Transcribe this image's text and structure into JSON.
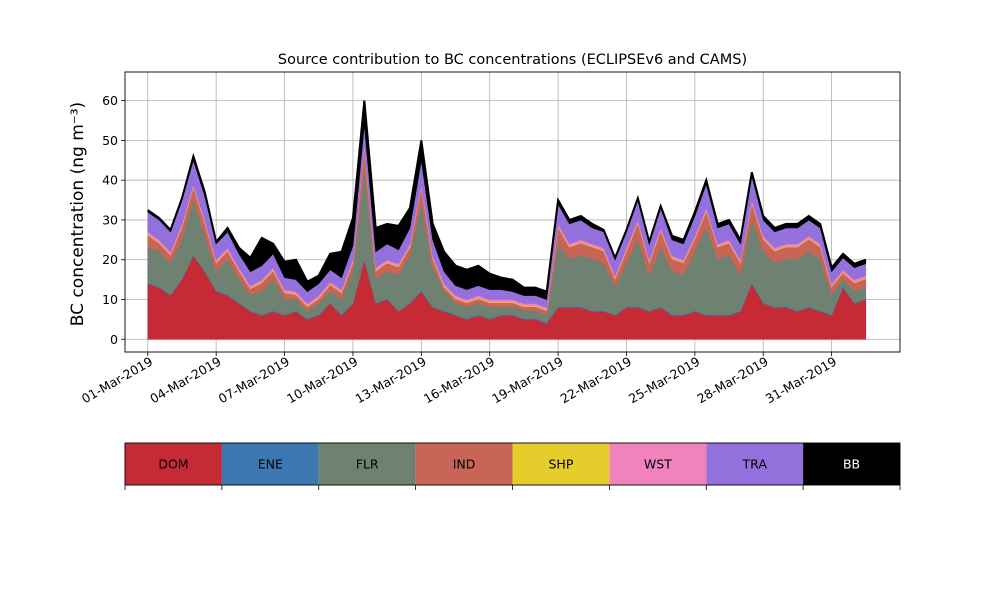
{
  "chart_data": [
    {
      "type": "area",
      "stacked": true,
      "title": "Source contribution to BC concentrations (ECLIPSEv6 and CAMS)",
      "ylabel": "BC concentration (ng m⁻³)",
      "xlabel": "",
      "ylim": [
        -3.2,
        67.2
      ],
      "xlim": [
        "2019-02-28T00:00",
        "2019-04-03T00:00"
      ],
      "grid": true,
      "y_ticks": [
        "0",
        "10",
        "20",
        "30",
        "40",
        "50",
        "60"
      ],
      "x_ticks": [
        "01-Mar-2019",
        "04-Mar-2019",
        "07-Mar-2019",
        "10-Mar-2019",
        "13-Mar-2019",
        "16-Mar-2019",
        "19-Mar-2019",
        "22-Mar-2019",
        "25-Mar-2019",
        "28-Mar-2019",
        "31-Mar-2019"
      ],
      "x": [
        "2019-03-01T00:00",
        "2019-03-01T12:00",
        "2019-03-02T00:00",
        "2019-03-02T12:00",
        "2019-03-03T00:00",
        "2019-03-03T12:00",
        "2019-03-04T00:00",
        "2019-03-04T12:00",
        "2019-03-05T00:00",
        "2019-03-05T12:00",
        "2019-03-06T00:00",
        "2019-03-06T12:00",
        "2019-03-07T00:00",
        "2019-03-07T12:00",
        "2019-03-08T00:00",
        "2019-03-08T12:00",
        "2019-03-09T00:00",
        "2019-03-09T12:00",
        "2019-03-10T00:00",
        "2019-03-10T12:00",
        "2019-03-11T00:00",
        "2019-03-11T12:00",
        "2019-03-12T00:00",
        "2019-03-12T12:00",
        "2019-03-13T00:00",
        "2019-03-13T12:00",
        "2019-03-14T00:00",
        "2019-03-14T12:00",
        "2019-03-15T00:00",
        "2019-03-15T12:00",
        "2019-03-16T00:00",
        "2019-03-16T12:00",
        "2019-03-17T00:00",
        "2019-03-17T12:00",
        "2019-03-18T00:00",
        "2019-03-18T12:00",
        "2019-03-19T00:00",
        "2019-03-19T12:00",
        "2019-03-20T00:00",
        "2019-03-20T12:00",
        "2019-03-21T00:00",
        "2019-03-21T12:00",
        "2019-03-22T00:00",
        "2019-03-22T12:00",
        "2019-03-23T00:00",
        "2019-03-23T12:00",
        "2019-03-24T00:00",
        "2019-03-24T12:00",
        "2019-03-25T00:00",
        "2019-03-25T12:00",
        "2019-03-26T00:00",
        "2019-03-26T12:00",
        "2019-03-27T00:00",
        "2019-03-27T12:00",
        "2019-03-28T00:00",
        "2019-03-28T12:00",
        "2019-03-29T00:00",
        "2019-03-29T12:00",
        "2019-03-30T00:00",
        "2019-03-30T12:00",
        "2019-03-31T00:00",
        "2019-03-31T12:00",
        "2019-04-01T00:00",
        "2019-04-01T12:00"
      ],
      "series": [
        {
          "name": "DOM",
          "color": "#c52a35",
          "values": [
            14,
            13,
            11,
            15,
            21,
            17,
            12,
            11,
            9,
            7,
            6,
            7,
            6,
            7,
            5,
            6,
            9,
            6,
            9,
            20,
            9,
            10,
            7,
            9,
            12,
            8,
            7,
            6,
            5,
            6,
            5,
            6,
            6,
            5,
            5,
            4,
            8,
            8,
            8,
            7,
            7,
            6,
            8,
            8,
            7,
            8,
            6,
            6,
            7,
            6,
            6,
            6,
            7,
            14,
            9,
            8,
            8,
            7,
            8,
            7,
            6,
            13,
            9,
            10
          ]
        },
        {
          "name": "ENE",
          "color": "#3b77b1",
          "values": [
            0.2,
            0.2,
            0.2,
            0.2,
            0.2,
            0.2,
            0.2,
            0.2,
            0.2,
            0.2,
            0.2,
            0.2,
            0.2,
            0.2,
            0.2,
            0.2,
            0.2,
            0.2,
            0.2,
            0.2,
            0.2,
            0.2,
            0.2,
            0.2,
            0.2,
            0.2,
            0.2,
            0.2,
            0.2,
            0.2,
            0.2,
            0.2,
            0.2,
            0.2,
            0.2,
            0.2,
            0.2,
            0.2,
            0.2,
            0.2,
            0.2,
            0.2,
            0.2,
            0.2,
            0.2,
            0.2,
            0.2,
            0.2,
            0.2,
            0.2,
            0.2,
            0.2,
            0.2,
            0.2,
            0.2,
            0.2,
            0.2,
            0.2,
            0.2,
            0.2,
            0.2,
            0.2,
            0.2,
            0.2
          ]
        },
        {
          "name": "FLR",
          "color": "#6f8170",
          "values": [
            9,
            9,
            8,
            10,
            14,
            9,
            5,
            9,
            6,
            4,
            6,
            8,
            4,
            3,
            2,
            3,
            3,
            4,
            8,
            23,
            6,
            7,
            9,
            12,
            22,
            10,
            5,
            3,
            3,
            3,
            3,
            2,
            2,
            2,
            2,
            2,
            16,
            12,
            13,
            13,
            12,
            7,
            11,
            17,
            9,
            15,
            11,
            10,
            15,
            22,
            14,
            15,
            9,
            16,
            13,
            11,
            12,
            13,
            14,
            13,
            5,
            2,
            3,
            3
          ]
        },
        {
          "name": "IND",
          "color": "#c86556",
          "values": [
            3,
            2,
            2,
            3,
            3,
            3,
            2,
            2,
            2,
            1.5,
            2,
            2,
            1.5,
            1,
            1,
            1,
            1.5,
            1.5,
            2,
            5,
            2,
            2,
            2,
            2,
            4,
            2,
            1,
            1,
            1,
            1,
            1,
            1,
            1,
            1,
            1,
            1,
            4,
            3,
            3,
            3,
            3,
            2,
            3,
            4,
            3,
            4,
            3,
            3,
            3,
            4,
            3,
            3,
            3,
            4,
            3,
            3,
            3,
            3,
            3,
            3,
            2,
            1.5,
            2,
            2
          ]
        },
        {
          "name": "SHP",
          "color": "#e6cd2c",
          "values": [
            0.2,
            0.2,
            0.2,
            0.2,
            0.2,
            0.2,
            0.2,
            0.2,
            0.2,
            0.2,
            0.2,
            0.2,
            0.2,
            0.2,
            0.2,
            0.2,
            0.2,
            0.2,
            0.2,
            0.2,
            0.2,
            0.2,
            0.2,
            0.2,
            0.2,
            0.2,
            0.2,
            0.2,
            0.2,
            0.2,
            0.2,
            0.2,
            0.2,
            0.2,
            0.2,
            0.2,
            0.2,
            0.2,
            0.2,
            0.2,
            0.2,
            0.2,
            0.2,
            0.2,
            0.2,
            0.2,
            0.2,
            0.2,
            0.2,
            0.2,
            0.2,
            0.2,
            0.2,
            0.2,
            0.2,
            0.2,
            0.2,
            0.2,
            0.2,
            0.2,
            0.2,
            0.2,
            0.2,
            0.2
          ]
        },
        {
          "name": "WST",
          "color": "#f082bc",
          "values": [
            0.6,
            0.6,
            0.6,
            0.6,
            0.6,
            0.6,
            0.6,
            0.6,
            0.6,
            0.6,
            0.6,
            0.6,
            0.6,
            0.6,
            0.6,
            0.6,
            0.6,
            0.6,
            0.6,
            0.6,
            0.6,
            0.6,
            0.6,
            0.6,
            0.6,
            0.6,
            0.6,
            0.6,
            0.6,
            0.6,
            0.6,
            0.6,
            0.6,
            0.6,
            0.6,
            0.6,
            0.6,
            0.6,
            0.6,
            0.6,
            0.6,
            0.6,
            0.6,
            0.6,
            0.6,
            0.6,
            0.6,
            0.6,
            0.6,
            0.6,
            0.6,
            0.6,
            0.6,
            0.6,
            0.6,
            0.6,
            0.6,
            0.6,
            0.6,
            0.6,
            0.6,
            0.6,
            0.6,
            0.6
          ]
        },
        {
          "name": "TRA",
          "color": "#9370dc",
          "values": [
            5,
            5,
            5,
            6,
            6,
            6,
            4,
            4,
            3.5,
            3.5,
            3.5,
            3.5,
            3,
            3,
            3,
            3,
            3,
            3,
            3.5,
            5,
            4,
            4,
            3.5,
            4,
            6,
            4,
            3,
            2.5,
            2.5,
            2.5,
            2.5,
            2.5,
            2,
            2,
            2,
            2,
            5,
            5,
            5,
            4,
            4,
            4,
            4,
            5,
            4,
            5,
            4,
            4,
            5,
            6,
            4,
            4,
            4,
            6,
            4,
            4,
            4,
            4,
            4,
            4,
            3,
            3,
            3,
            3
          ]
        },
        {
          "name": "BB",
          "color": "#000000",
          "values": [
            0.5,
            0.5,
            0.5,
            0.5,
            1,
            1,
            0.5,
            1,
            1.5,
            3.5,
            7,
            2.5,
            4,
            5,
            2.5,
            2,
            4,
            6.5,
            7,
            6,
            6,
            5,
            6,
            5,
            5,
            4,
            5,
            5,
            5,
            5,
            4,
            3,
            3,
            2,
            2,
            2,
            1,
            1,
            1,
            1,
            0.5,
            0.5,
            0.5,
            0.5,
            0.5,
            0.5,
            1,
            1,
            1,
            1,
            1,
            1,
            1,
            1,
            1,
            1,
            1,
            1,
            1,
            1,
            1,
            1,
            1,
            1
          ]
        }
      ]
    },
    {
      "type": "legend-colorbar",
      "labels": [
        "DOM",
        "ENE",
        "FLR",
        "IND",
        "SHP",
        "WST",
        "TRA",
        "BB"
      ],
      "colors": [
        "#c52a35",
        "#3b77b1",
        "#6f8170",
        "#c86556",
        "#e6cd2c",
        "#f082bc",
        "#9370dc",
        "#000000"
      ],
      "label_colors": [
        "#000000",
        "#000000",
        "#000000",
        "#000000",
        "#000000",
        "#000000",
        "#000000",
        "#ffffff"
      ]
    }
  ]
}
